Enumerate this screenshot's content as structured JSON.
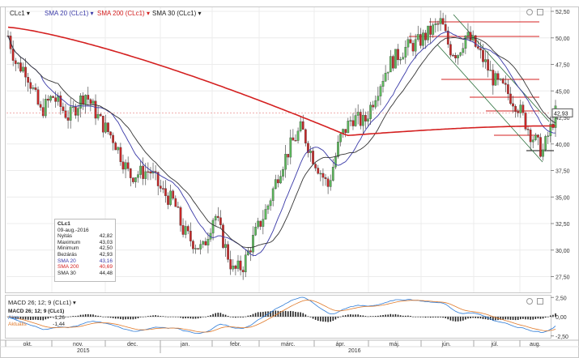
{
  "toolbar": {
    "items": [
      {
        "label": "CLc1",
        "color": "#222222"
      },
      {
        "label": "SMA 20 (CLc1)",
        "color": "#3a3aa8"
      },
      {
        "label": "SMA 200 (CLc1)",
        "color": "#d42020"
      },
      {
        "label": "SMA 30 (CLc1)",
        "color": "#222222"
      }
    ],
    "dropdown_glyph": "▾",
    "icons": [
      "settings-icon",
      "zoom-icon"
    ]
  },
  "y_axis": {
    "ticks": [
      "52,50",
      "50,00",
      "47,50",
      "45,00",
      "42,50",
      "40,00",
      "37,50",
      "35,00",
      "32,50",
      "30,00",
      "27,50"
    ],
    "current_price_label": "42,93"
  },
  "info_box": {
    "title": "CLc1",
    "date": "09-aug.-2016",
    "rows": [
      {
        "label": "Nyitás",
        "value": "42,82",
        "color": "#222"
      },
      {
        "label": "Maximum",
        "value": "43,03",
        "color": "#222"
      },
      {
        "label": "Minimum",
        "value": "42,50",
        "color": "#222"
      },
      {
        "label": "Bezárás",
        "value": "42,93",
        "color": "#222"
      },
      {
        "label": "SMA 20",
        "value": "43,16",
        "color": "#3a3aa8"
      },
      {
        "label": "SMA 200",
        "value": "40,69",
        "color": "#d42020"
      },
      {
        "label": "SMA 30",
        "value": "44,48",
        "color": "#222"
      }
    ]
  },
  "macd": {
    "header": "MACD 26; 12; 9 (CLc1)",
    "legend_title": "MACD 26; 12; 9 (CLc1)",
    "rows": [
      {
        "label": "Alap",
        "value": "-1,26",
        "color": "#2e7bd6"
      },
      {
        "label": "Aktuális",
        "value": "-1,44",
        "color": "#e07a2a"
      }
    ],
    "ticks": [
      "2,50",
      "0,00",
      "-2,50"
    ]
  },
  "x_axis": {
    "months": [
      "okt.",
      "nov.",
      "dec.",
      "jan.",
      "febr.",
      "márc.",
      "ápr.",
      "máj.",
      "jún.",
      "júl.",
      "aug."
    ],
    "years": [
      "2015",
      "2016"
    ]
  },
  "colors": {
    "bull": "#5cb85c",
    "bear": "#c62828",
    "sma20": "#3a3aa8",
    "sma200": "#d42020",
    "sma30": "#333333",
    "price_line": "#e06060"
  }
}
